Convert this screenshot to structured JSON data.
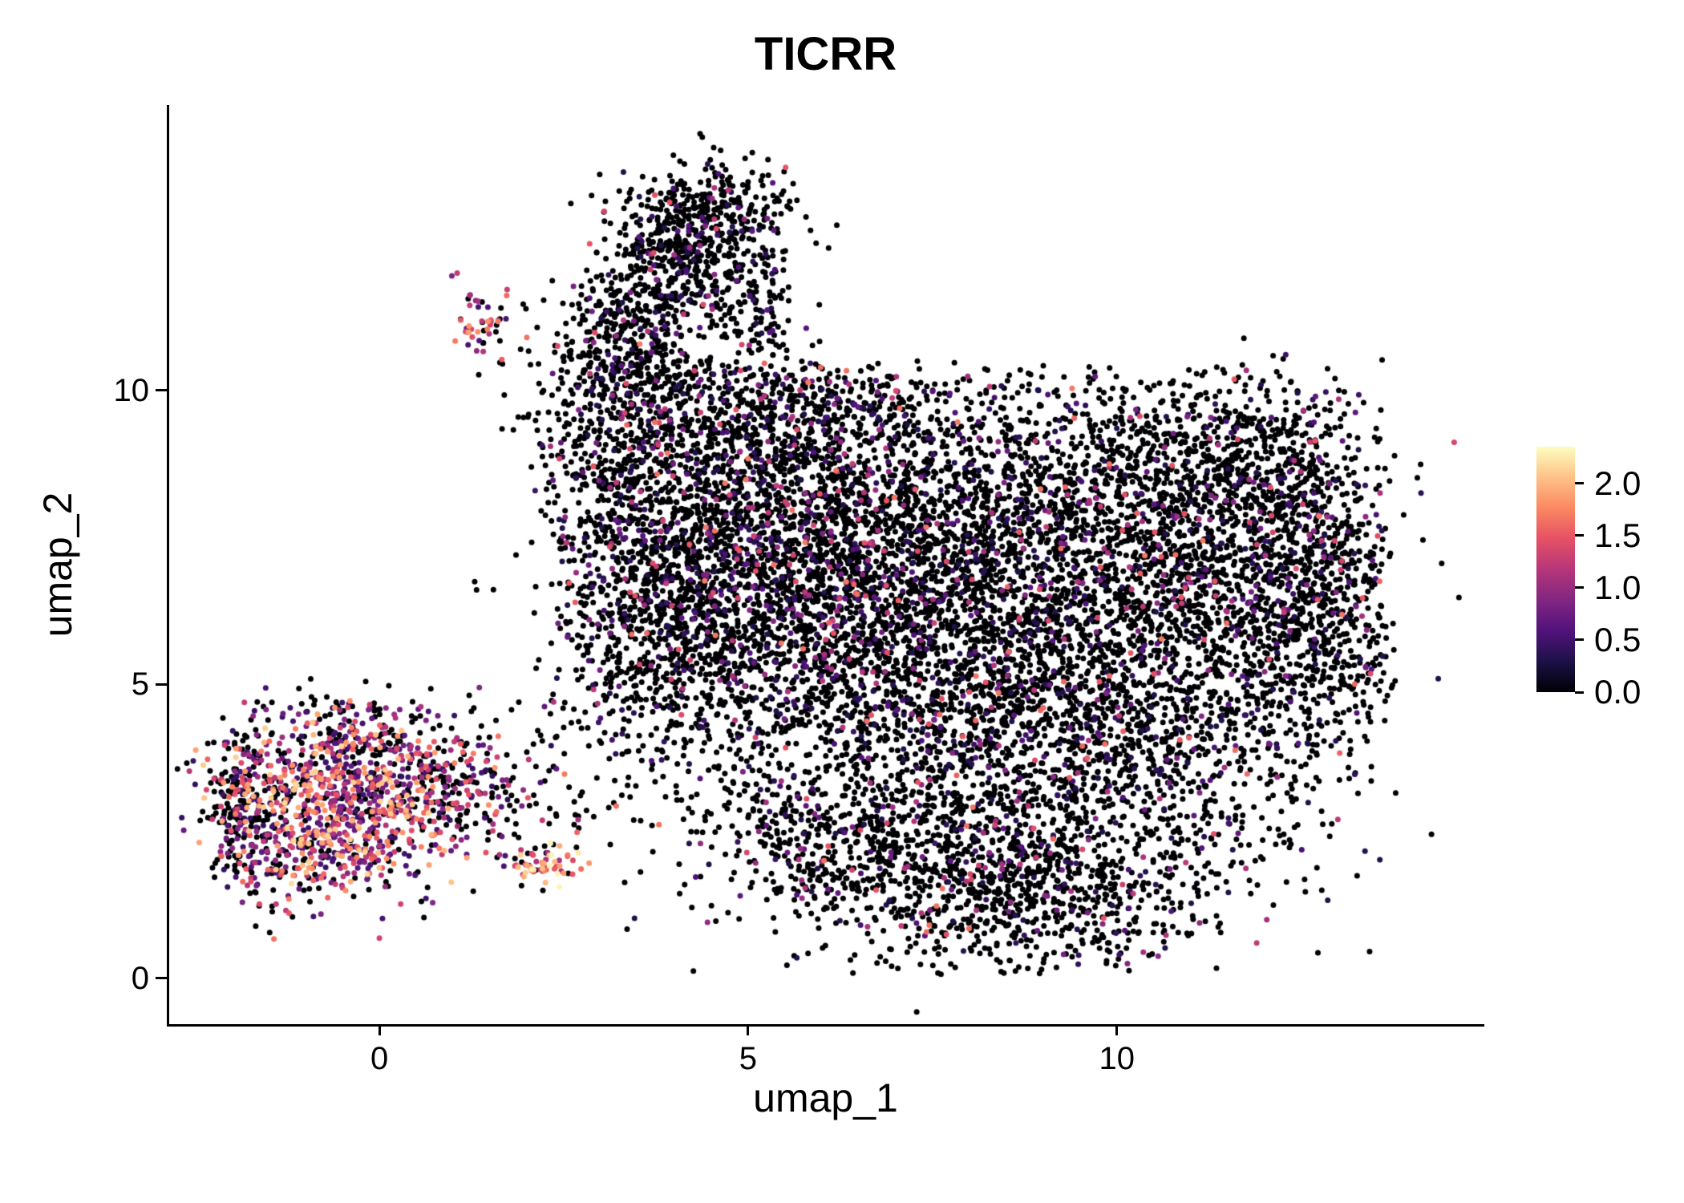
{
  "page": {
    "background": "#ffffff"
  },
  "chart_data": {
    "type": "scatter",
    "title": "TICRR",
    "xlabel": "umap_1",
    "ylabel": "umap_2",
    "xlim": [
      -2.85,
      14.95
    ],
    "ylim": [
      -0.78,
      14.85
    ],
    "x_ticks": {
      "values": [
        0,
        5,
        10
      ],
      "labels": [
        "0",
        "5",
        "10"
      ]
    },
    "y_ticks": {
      "values": [
        0,
        5,
        10
      ],
      "labels": [
        "0",
        "5",
        "10"
      ]
    },
    "legend_position": "right",
    "grid": false,
    "point_radius": 3.5,
    "seed": 42,
    "colormap": {
      "name": "magma",
      "max": 2.35,
      "stops": [
        "#000004",
        "#1D1147",
        "#51127C",
        "#822681",
        "#B63679",
        "#E65164",
        "#FB8861",
        "#FEC287",
        "#FCFDBF"
      ]
    },
    "colorbar": {
      "tick_values": [
        2.0,
        1.5,
        1.0,
        0.5,
        0.0
      ],
      "tick_labels": [
        "2.0",
        "1.5",
        "1.0",
        "0.5",
        "0.0"
      ]
    },
    "clusters": [
      {
        "name": "main-upper-left",
        "cx": 5.0,
        "cy": 7.6,
        "sx": 1.5,
        "sy": 1.4,
        "n": 2000,
        "p_zero": 0.8,
        "v_min": 0.3,
        "v_max": 1.7,
        "v_pow": 2.6,
        "x_min": 2.4,
        "y_max": 10.4
      },
      {
        "name": "main-upper-center",
        "cx": 8.3,
        "cy": 7.2,
        "sx": 1.9,
        "sy": 1.5,
        "n": 2600,
        "p_zero": 0.86,
        "v_min": 0.3,
        "v_max": 1.7,
        "v_pow": 2.6,
        "y_max": 10.45
      },
      {
        "name": "main-right",
        "cx": 11.6,
        "cy": 6.8,
        "sx": 1.1,
        "sy": 1.4,
        "n": 1100,
        "p_zero": 0.86,
        "v_min": 0.3,
        "v_max": 1.7,
        "v_pow": 2.6,
        "x_max": 13.75
      },
      {
        "name": "main-mid",
        "cx": 6.8,
        "cy": 4.8,
        "sx": 2.0,
        "sy": 1.2,
        "n": 1300,
        "p_zero": 0.87,
        "v_min": 0.3,
        "v_max": 1.7,
        "v_pow": 2.6
      },
      {
        "name": "main-lower-mid",
        "cx": 9.8,
        "cy": 4.0,
        "sx": 1.6,
        "sy": 1.1,
        "n": 900,
        "p_zero": 0.87,
        "v_min": 0.3,
        "v_max": 1.7,
        "v_pow": 2.6,
        "x_max": 12.6
      },
      {
        "name": "main-lower-lobe",
        "cx": 8.6,
        "cy": 1.7,
        "sx": 1.5,
        "sy": 0.85,
        "n": 1100,
        "p_zero": 0.88,
        "v_min": 0.3,
        "v_max": 1.7,
        "v_pow": 2.6,
        "y_min": 0.05
      },
      {
        "name": "main-lower-left",
        "cx": 6.2,
        "cy": 2.4,
        "sx": 0.9,
        "sy": 0.7,
        "n": 350,
        "p_zero": 0.88,
        "v_min": 0.3,
        "v_max": 1.5,
        "v_pow": 2.6
      },
      {
        "name": "main-left-edge",
        "cx": 4.0,
        "cy": 6.3,
        "sx": 0.8,
        "sy": 1.2,
        "n": 600,
        "p_zero": 0.82,
        "v_min": 0.3,
        "v_max": 1.7,
        "v_pow": 2.6
      },
      {
        "name": "main-right-rim",
        "cx": 12.9,
        "cy": 6.2,
        "sx": 0.5,
        "sy": 1.5,
        "n": 450,
        "p_zero": 0.88,
        "v_min": 0.3,
        "v_max": 1.7,
        "v_pow": 2.6,
        "x_max": 13.8
      },
      {
        "name": "main-upper-right",
        "cx": 11.2,
        "cy": 8.8,
        "sx": 1.2,
        "sy": 0.8,
        "n": 600,
        "p_zero": 0.88,
        "v_min": 0.3,
        "v_max": 1.7,
        "v_pow": 2.6,
        "x_max": 13.3,
        "y_max": 10.4
      },
      {
        "name": "main-top-edge",
        "cx": 5.6,
        "cy": 9.6,
        "sx": 1.2,
        "sy": 0.6,
        "n": 450,
        "p_zero": 0.8,
        "v_min": 0.3,
        "v_max": 1.7,
        "v_pow": 2.6,
        "y_max": 10.5
      },
      {
        "name": "main-upleft-spur",
        "cx": 3.0,
        "cy": 9.0,
        "sx": 0.55,
        "sy": 0.9,
        "n": 250,
        "p_zero": 0.8,
        "v_min": 0.3,
        "v_max": 1.7,
        "v_pow": 2.6
      },
      {
        "name": "arm-base",
        "cx": 3.35,
        "cy": 10.8,
        "sx": 0.5,
        "sy": 0.55,
        "n": 300,
        "p_zero": 0.88,
        "v_min": 0.3,
        "v_max": 1.5,
        "v_pow": 2.2
      },
      {
        "name": "arm-mid",
        "cx": 3.9,
        "cy": 12.1,
        "sx": 0.45,
        "sy": 0.6,
        "n": 340,
        "p_zero": 0.88,
        "v_min": 0.3,
        "v_max": 1.5,
        "v_pow": 2.2
      },
      {
        "name": "arm-tip",
        "cx": 4.45,
        "cy": 13.05,
        "sx": 0.55,
        "sy": 0.42,
        "n": 300,
        "p_zero": 0.88,
        "v_min": 0.3,
        "v_max": 1.5,
        "v_pow": 2.2
      },
      {
        "name": "arm-right-branch",
        "cx": 5.05,
        "cy": 11.6,
        "sx": 0.33,
        "sy": 0.65,
        "n": 160,
        "p_zero": 0.9,
        "v_min": 0.3,
        "v_max": 1.2,
        "v_pow": 2.2
      },
      {
        "name": "arm-colored-clump",
        "cx": 1.38,
        "cy": 11.2,
        "sx": 0.18,
        "sy": 0.28,
        "n": 48,
        "p_zero": 0.28,
        "v_min": 0.5,
        "v_max": 1.9,
        "v_pow": 1.0
      },
      {
        "name": "bottomleft-core",
        "cx": -0.55,
        "cy": 3.0,
        "sx": 0.8,
        "sy": 0.7,
        "n": 900,
        "p_zero": 0.2,
        "v_min": 0.4,
        "v_max": 2.2,
        "v_pow": 1.4
      },
      {
        "name": "bottomleft-rim",
        "cx": -1.85,
        "cy": 2.9,
        "sx": 0.28,
        "sy": 0.75,
        "n": 210,
        "p_zero": 0.72,
        "v_min": 0.4,
        "v_max": 1.6,
        "v_pow": 2.0
      },
      {
        "name": "bottomleft-top",
        "cx": -0.3,
        "cy": 4.25,
        "sx": 0.7,
        "sy": 0.33,
        "n": 130,
        "p_zero": 0.68,
        "v_min": 0.4,
        "v_max": 1.6,
        "v_pow": 1.8
      },
      {
        "name": "bottomleft-tail",
        "cx": 0.95,
        "cy": 3.2,
        "sx": 0.45,
        "sy": 0.42,
        "n": 140,
        "p_zero": 0.45,
        "v_min": 0.4,
        "v_max": 1.9,
        "v_pow": 1.4
      },
      {
        "name": "bright-clump",
        "cx": 2.25,
        "cy": 1.95,
        "sx": 0.22,
        "sy": 0.16,
        "n": 55,
        "p_zero": 0.08,
        "v_min": 1.0,
        "v_max": 2.35,
        "v_pow": 0.8
      },
      {
        "name": "mid-scatter",
        "cx": 1.6,
        "cy": 3.0,
        "sx": 0.8,
        "sy": 0.75,
        "n": 110,
        "p_zero": 0.6,
        "v_min": 0.4,
        "v_max": 1.7,
        "v_pow": 1.6
      },
      {
        "name": "bottomleft-strays",
        "cx": -1.1,
        "cy": 1.85,
        "sx": 0.55,
        "sy": 0.3,
        "n": 80,
        "p_zero": 0.5,
        "v_min": 0.5,
        "v_max": 1.9,
        "v_pow": 1.4
      },
      {
        "name": "broad-noise",
        "cx": 8.0,
        "cy": 6.0,
        "sx": 3.0,
        "sy": 3.2,
        "n": 350,
        "p_zero": 0.82,
        "v_min": 0.3,
        "v_max": 1.6,
        "v_pow": 2.6,
        "x_min": 3.0,
        "y_min": 0.4,
        "y_max": 10.2
      },
      {
        "name": "gap-sparse",
        "cx": 4.0,
        "cy": 10.35,
        "sx": 1.2,
        "sy": 0.45,
        "n": 110,
        "p_zero": 0.9,
        "v_min": 0.3,
        "v_max": 1.2,
        "v_pow": 2.2
      }
    ]
  }
}
